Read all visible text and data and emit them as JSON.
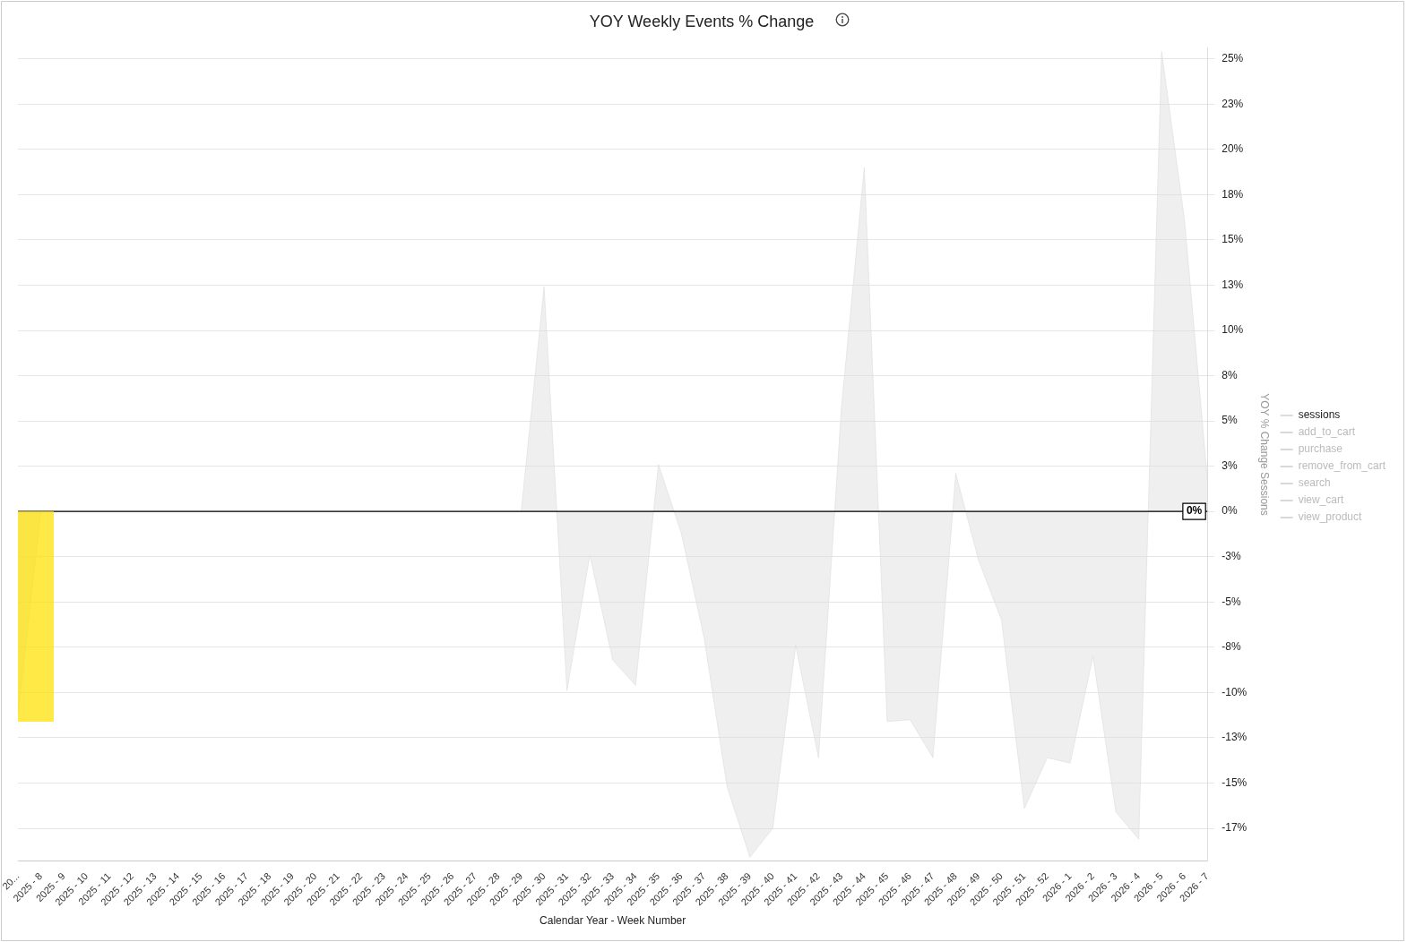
{
  "chart_data": {
    "type": "area",
    "title": "YOY Weekly Events % Change",
    "xlabel": "Calendar Year - Week Number",
    "ylabel": "YOY % Change Sessions",
    "categories": [
      "20...",
      "2025 - 8",
      "2025 - 9",
      "2025 - 10",
      "2025 - 11",
      "2025 - 12",
      "2025 - 13",
      "2025 - 14",
      "2025 - 15",
      "2025 - 16",
      "2025 - 17",
      "2025 - 18",
      "2025 - 19",
      "2025 - 20",
      "2025 - 21",
      "2025 - 22",
      "2025 - 23",
      "2025 - 24",
      "2025 - 25",
      "2025 - 26",
      "2025 - 27",
      "2025 - 28",
      "2025 - 29",
      "2025 - 30",
      "2025 - 31",
      "2025 - 32",
      "2025 - 33",
      "2025 - 34",
      "2025 - 35",
      "2025 - 36",
      "2025 - 37",
      "2025 - 38",
      "2025 - 39",
      "2025 - 40",
      "2025 - 41",
      "2025 - 42",
      "2025 - 43",
      "2025 - 44",
      "2025 - 45",
      "2025 - 46",
      "2025 - 47",
      "2025 - 48",
      "2025 - 49",
      "2025 - 50",
      "2025 - 51",
      "2025 - 52",
      "2026 - 1",
      "2026 - 2",
      "2026 - 3",
      "2026 - 4",
      "2026 - 5",
      "2026 - 6",
      "2026 - 7"
    ],
    "series": [
      {
        "name": "sessions",
        "color": "#dcdcdc",
        "values": [
          -11.2,
          0,
          0,
          0,
          0,
          0,
          0,
          0,
          0,
          0,
          0,
          0,
          0,
          0,
          0,
          0,
          0,
          0,
          0,
          0,
          0,
          0,
          0,
          12.4,
          -9.9,
          -2.4,
          -8.2,
          -9.6,
          2.6,
          -1.2,
          -7.0,
          -15.2,
          -19.1,
          -17.5,
          -7.4,
          -13.6,
          5.7,
          19.0,
          -11.6,
          -11.5,
          -13.6,
          2.1,
          -2.7,
          -6.0,
          -16.4,
          -13.6,
          -13.9,
          -8.0,
          -16.6,
          -18.1,
          25.4,
          16.1,
          1.8
        ]
      },
      {
        "name": "add_to_cart",
        "color": "#d9d9d9",
        "values": [
          null,
          null,
          null,
          null,
          null,
          null,
          null,
          null,
          null,
          null,
          null,
          null,
          null,
          null,
          null,
          null,
          null,
          null,
          null,
          null,
          null,
          null,
          null,
          null,
          null,
          null,
          null,
          null,
          null,
          null,
          null,
          null,
          null,
          null,
          null,
          null,
          null,
          null,
          null,
          null,
          null,
          null,
          null,
          null,
          null,
          null,
          null,
          null,
          null,
          null,
          null,
          null,
          null
        ]
      },
      {
        "name": "purchase",
        "color": "#d9d9d9",
        "values": [
          null,
          null,
          null,
          null,
          null,
          null,
          null,
          null,
          null,
          null,
          null,
          null,
          null,
          null,
          null,
          null,
          null,
          null,
          null,
          null,
          null,
          null,
          null,
          null,
          null,
          null,
          null,
          null,
          null,
          null,
          null,
          null,
          null,
          null,
          null,
          null,
          null,
          null,
          null,
          null,
          null,
          null,
          null,
          null,
          null,
          null,
          null,
          null,
          null,
          null,
          null,
          null,
          null
        ]
      },
      {
        "name": "remove_from_cart",
        "color": "#d9d9d9",
        "values": [
          null,
          null,
          null,
          null,
          null,
          null,
          null,
          null,
          null,
          null,
          null,
          null,
          null,
          null,
          null,
          null,
          null,
          null,
          null,
          null,
          null,
          null,
          null,
          null,
          null,
          null,
          null,
          null,
          null,
          null,
          null,
          null,
          null,
          null,
          null,
          null,
          null,
          null,
          null,
          null,
          null,
          null,
          null,
          null,
          null,
          null,
          null,
          null,
          null,
          null,
          null,
          null,
          null
        ]
      },
      {
        "name": "search",
        "color": "#d9d9d9",
        "values": [
          null,
          null,
          null,
          null,
          null,
          null,
          null,
          null,
          null,
          null,
          null,
          null,
          null,
          null,
          null,
          null,
          null,
          null,
          null,
          null,
          null,
          null,
          null,
          null,
          null,
          null,
          null,
          null,
          null,
          null,
          null,
          null,
          null,
          null,
          null,
          null,
          null,
          null,
          null,
          null,
          null,
          null,
          null,
          null,
          null,
          null,
          null,
          null,
          null,
          null,
          null,
          null,
          null
        ]
      },
      {
        "name": "view_cart",
        "color": "#d9d9d9",
        "values": [
          null,
          null,
          null,
          null,
          null,
          null,
          null,
          null,
          null,
          null,
          null,
          null,
          null,
          null,
          null,
          null,
          null,
          null,
          null,
          null,
          null,
          null,
          null,
          null,
          null,
          null,
          null,
          null,
          null,
          null,
          null,
          null,
          null,
          null,
          null,
          null,
          null,
          null,
          null,
          null,
          null,
          null,
          null,
          null,
          null,
          null,
          null,
          null,
          null,
          null,
          null,
          null,
          null
        ]
      },
      {
        "name": "view_product",
        "color": "#d9d9d9",
        "values": [
          null,
          null,
          null,
          null,
          null,
          null,
          null,
          null,
          null,
          null,
          null,
          null,
          null,
          null,
          null,
          null,
          null,
          null,
          null,
          null,
          null,
          null,
          null,
          null,
          null,
          null,
          null,
          null,
          null,
          null,
          null,
          null,
          null,
          null,
          null,
          null,
          null,
          null,
          null,
          null,
          null,
          null,
          null,
          null,
          null,
          null,
          null,
          null,
          null,
          null,
          null,
          null,
          null
        ]
      }
    ],
    "ylim": [
      -19.3,
      25.6
    ],
    "yticks": [
      {
        "value": 25,
        "label": "25%"
      },
      {
        "value": 22.5,
        "label": "23%"
      },
      {
        "value": 20,
        "label": "20%"
      },
      {
        "value": 17.5,
        "label": "18%"
      },
      {
        "value": 15,
        "label": "15%"
      },
      {
        "value": 12.5,
        "label": "13%"
      },
      {
        "value": 10,
        "label": "10%"
      },
      {
        "value": 7.5,
        "label": "8%"
      },
      {
        "value": 5,
        "label": "5%"
      },
      {
        "value": 2.5,
        "label": "3%"
      },
      {
        "value": 0,
        "label": "0%"
      },
      {
        "value": -2.5,
        "label": "-3%"
      },
      {
        "value": -5,
        "label": "-5%"
      },
      {
        "value": -7.5,
        "label": "-8%"
      },
      {
        "value": -10,
        "label": "-10%"
      },
      {
        "value": -12.5,
        "label": "-13%"
      },
      {
        "value": -15,
        "label": "-15%"
      },
      {
        "value": -17.5,
        "label": "-17%"
      }
    ],
    "ref_lines": [
      {
        "axis": "y",
        "value": 0,
        "label": "0%",
        "color": "#000000"
      }
    ],
    "grid": "y",
    "legend": "right",
    "marker": "none"
  }
}
